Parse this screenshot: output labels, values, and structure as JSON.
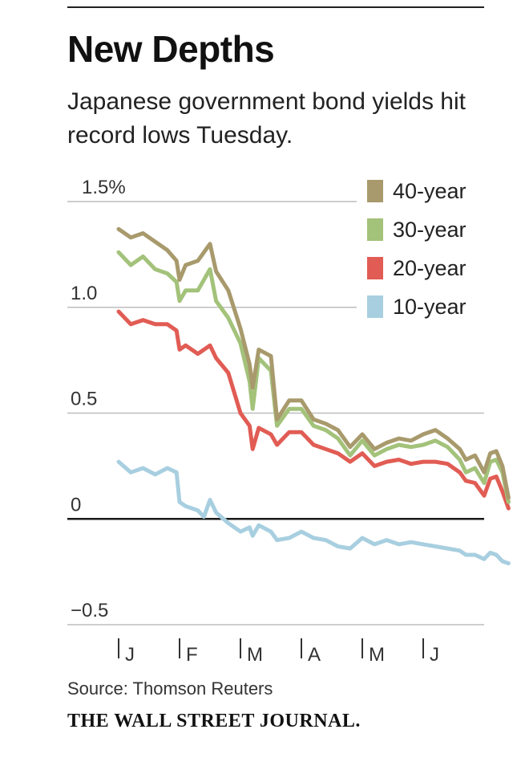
{
  "header": {
    "title": "New Depths",
    "subtitle": "Japanese government bond yields hit record lows Tuesday."
  },
  "footer": {
    "source": "Source: Thomson Reuters",
    "brand": "THE WALL STREET JOURNAL."
  },
  "chart_data": {
    "type": "line",
    "title": "New Depths",
    "xlabel": "",
    "ylabel": "",
    "ylim": [
      -0.5,
      1.5
    ],
    "y_ticks": [
      {
        "value": 1.5,
        "label": "1.5%"
      },
      {
        "value": 1.0,
        "label": "1.0"
      },
      {
        "value": 0.5,
        "label": "0.5"
      },
      {
        "value": 0,
        "label": "0"
      },
      {
        "value": -0.5,
        "label": "−0.5"
      }
    ],
    "x_range": [
      0,
      6.4
    ],
    "x_ticks": [
      {
        "value": 0,
        "label": "J"
      },
      {
        "value": 1,
        "label": "F"
      },
      {
        "value": 2,
        "label": "M"
      },
      {
        "value": 3,
        "label": "A"
      },
      {
        "value": 4,
        "label": "M"
      },
      {
        "value": 5,
        "label": "J"
      }
    ],
    "legend_position": "top-right",
    "series": [
      {
        "name": "40-year",
        "color": "#a89a6c",
        "x": [
          0,
          0.2,
          0.4,
          0.6,
          0.8,
          0.95,
          1.0,
          1.1,
          1.3,
          1.5,
          1.6,
          1.8,
          2.0,
          2.15,
          2.2,
          2.3,
          2.5,
          2.6,
          2.8,
          3.0,
          3.2,
          3.4,
          3.6,
          3.8,
          4.0,
          4.2,
          4.4,
          4.6,
          4.8,
          5.0,
          5.2,
          5.4,
          5.6,
          5.7,
          5.85,
          6.0,
          6.1,
          6.2,
          6.3,
          6.4
        ],
        "values": [
          1.37,
          1.33,
          1.35,
          1.31,
          1.27,
          1.22,
          1.13,
          1.2,
          1.22,
          1.3,
          1.17,
          1.08,
          0.9,
          0.73,
          0.62,
          0.8,
          0.77,
          0.47,
          0.56,
          0.56,
          0.47,
          0.45,
          0.42,
          0.34,
          0.4,
          0.33,
          0.36,
          0.38,
          0.37,
          0.4,
          0.42,
          0.38,
          0.33,
          0.28,
          0.3,
          0.22,
          0.31,
          0.32,
          0.25,
          0.1
        ]
      },
      {
        "name": "30-year",
        "color": "#a3c27a",
        "x": [
          0,
          0.2,
          0.4,
          0.6,
          0.8,
          0.95,
          1.0,
          1.1,
          1.3,
          1.5,
          1.6,
          1.8,
          2.0,
          2.15,
          2.2,
          2.3,
          2.5,
          2.6,
          2.8,
          3.0,
          3.2,
          3.4,
          3.6,
          3.8,
          4.0,
          4.2,
          4.4,
          4.6,
          4.8,
          5.0,
          5.2,
          5.4,
          5.6,
          5.7,
          5.85,
          6.0,
          6.1,
          6.2,
          6.3,
          6.4
        ],
        "values": [
          1.26,
          1.2,
          1.24,
          1.18,
          1.16,
          1.12,
          1.03,
          1.08,
          1.08,
          1.18,
          1.03,
          0.95,
          0.83,
          0.65,
          0.52,
          0.76,
          0.7,
          0.44,
          0.52,
          0.52,
          0.44,
          0.42,
          0.38,
          0.3,
          0.37,
          0.3,
          0.33,
          0.35,
          0.34,
          0.35,
          0.37,
          0.34,
          0.28,
          0.22,
          0.24,
          0.17,
          0.27,
          0.28,
          0.22,
          0.08
        ]
      },
      {
        "name": "20-year",
        "color": "#e15c54",
        "x": [
          0,
          0.2,
          0.4,
          0.6,
          0.8,
          0.95,
          1.0,
          1.1,
          1.3,
          1.5,
          1.6,
          1.8,
          2.0,
          2.15,
          2.2,
          2.3,
          2.5,
          2.6,
          2.8,
          3.0,
          3.2,
          3.4,
          3.6,
          3.8,
          4.0,
          4.2,
          4.4,
          4.6,
          4.8,
          5.0,
          5.2,
          5.4,
          5.6,
          5.7,
          5.85,
          6.0,
          6.1,
          6.2,
          6.3,
          6.4
        ],
        "values": [
          0.98,
          0.92,
          0.94,
          0.92,
          0.92,
          0.89,
          0.8,
          0.82,
          0.78,
          0.82,
          0.76,
          0.69,
          0.5,
          0.44,
          0.33,
          0.43,
          0.4,
          0.35,
          0.41,
          0.41,
          0.35,
          0.33,
          0.31,
          0.27,
          0.31,
          0.25,
          0.27,
          0.28,
          0.26,
          0.27,
          0.27,
          0.26,
          0.22,
          0.18,
          0.17,
          0.11,
          0.19,
          0.2,
          0.13,
          0.05
        ]
      },
      {
        "name": "10-year",
        "color": "#a8cfe0",
        "x": [
          0,
          0.2,
          0.4,
          0.6,
          0.8,
          0.95,
          1.0,
          1.1,
          1.3,
          1.4,
          1.5,
          1.6,
          1.8,
          2.0,
          2.15,
          2.2,
          2.3,
          2.5,
          2.6,
          2.8,
          3.0,
          3.2,
          3.4,
          3.6,
          3.8,
          4.0,
          4.2,
          4.4,
          4.6,
          4.8,
          5.0,
          5.2,
          5.4,
          5.6,
          5.7,
          5.85,
          6.0,
          6.1,
          6.2,
          6.3,
          6.4
        ],
        "values": [
          0.27,
          0.22,
          0.24,
          0.21,
          0.24,
          0.22,
          0.08,
          0.06,
          0.04,
          0.01,
          0.09,
          0.03,
          -0.02,
          -0.06,
          -0.04,
          -0.08,
          -0.03,
          -0.06,
          -0.1,
          -0.09,
          -0.06,
          -0.09,
          -0.1,
          -0.13,
          -0.14,
          -0.09,
          -0.12,
          -0.1,
          -0.12,
          -0.11,
          -0.12,
          -0.13,
          -0.14,
          -0.15,
          -0.17,
          -0.17,
          -0.19,
          -0.16,
          -0.17,
          -0.2,
          -0.21
        ]
      }
    ]
  }
}
